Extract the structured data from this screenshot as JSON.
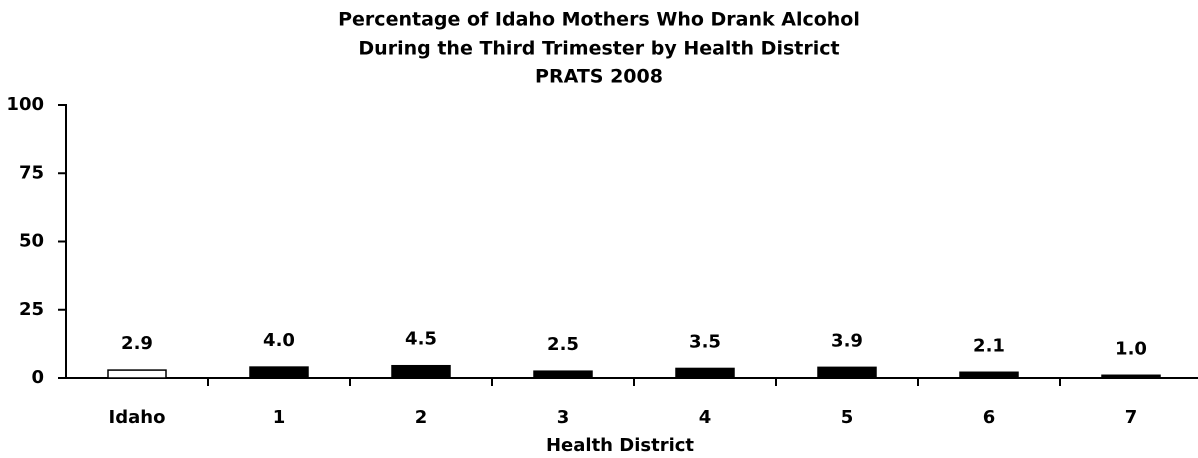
{
  "chart_data": {
    "type": "bar",
    "title": [
      "Percentage of Idaho Mothers Who Drank Alcohol",
      "During the Third Trimester by Health District",
      "PRATS 2008"
    ],
    "x_label": "Health District",
    "categories": [
      "Idaho",
      "1",
      "2",
      "3",
      "4",
      "5",
      "6",
      "7"
    ],
    "values": [
      2.9,
      4.0,
      4.5,
      2.5,
      3.5,
      3.9,
      2.1,
      1.0
    ],
    "value_labels": [
      "2.9",
      "4.0",
      "4.5",
      "2.5",
      "3.5",
      "3.9",
      "2.1",
      "1.0"
    ],
    "colors": [
      "#ffffff",
      "#000000",
      "#000000",
      "#000000",
      "#000000",
      "#000000",
      "#000000",
      "#000000"
    ],
    "ylim": [
      0,
      100
    ],
    "yticks": [
      0,
      25,
      50,
      75,
      100
    ],
    "grid": false
  }
}
